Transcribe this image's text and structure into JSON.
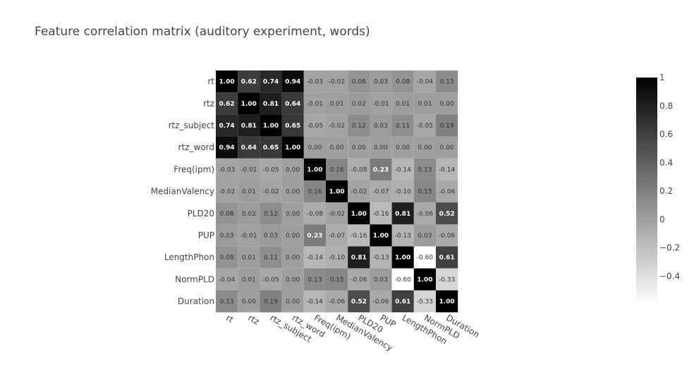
{
  "chart_data": {
    "type": "heatmap",
    "title": "Feature correlation matrix (auditory experiment,  words)",
    "labels": [
      "rt",
      "rtz",
      "rtz_subject",
      "rtz_word",
      "Freq(ipm)",
      "MedianValency",
      "PLD20",
      "PUP",
      "LengthPhon",
      "NormPLD",
      "Duration"
    ],
    "matrix": [
      [
        1.0,
        0.62,
        0.74,
        0.94,
        -0.03,
        -0.02,
        0.08,
        0.03,
        0.08,
        -0.04,
        0.13
      ],
      [
        0.62,
        1.0,
        0.81,
        0.64,
        -0.01,
        0.01,
        0.02,
        -0.01,
        0.01,
        0.01,
        0.0
      ],
      [
        0.74,
        0.81,
        1.0,
        0.65,
        -0.05,
        -0.02,
        0.12,
        0.03,
        0.11,
        -0.05,
        0.19
      ],
      [
        0.94,
        0.64,
        0.65,
        1.0,
        0.0,
        0.0,
        0.0,
        0.0,
        0.0,
        0.0,
        0.0
      ],
      [
        -0.03,
        -0.01,
        -0.05,
        0.0,
        1.0,
        0.16,
        -0.08,
        0.23,
        -0.14,
        0.13,
        -0.14
      ],
      [
        -0.02,
        0.01,
        -0.02,
        0.0,
        0.16,
        1.0,
        -0.02,
        -0.07,
        -0.1,
        0.15,
        -0.06
      ],
      [
        0.08,
        0.02,
        0.12,
        0.0,
        -0.08,
        -0.02,
        1.0,
        -0.16,
        0.81,
        -0.06,
        0.52
      ],
      [
        0.03,
        -0.01,
        0.03,
        0.0,
        0.23,
        -0.07,
        -0.16,
        1.0,
        -0.13,
        0.03,
        -0.06
      ],
      [
        0.08,
        0.01,
        0.11,
        0.0,
        -0.14,
        -0.1,
        0.81,
        -0.13,
        1.0,
        -0.6,
        0.61
      ],
      [
        -0.04,
        0.01,
        -0.05,
        0.0,
        0.13,
        0.15,
        -0.06,
        0.03,
        -0.6,
        1.0,
        -0.33
      ],
      [
        0.13,
        0.0,
        0.19,
        0.0,
        -0.14,
        -0.06,
        0.52,
        -0.06,
        0.61,
        -0.33,
        1.0
      ]
    ],
    "zmin": -0.6,
    "zmax": 1.0,
    "colorscale": [
      "#ffffff",
      "#000000"
    ],
    "colorbar_ticks": [
      1,
      0.8,
      0.6,
      0.4,
      0.2,
      0,
      -0.2,
      -0.4
    ],
    "colorbar_tick_labels": [
      "1",
      "0.8",
      "0.6",
      "0.4",
      "0.2",
      "0",
      "−0.2",
      "−0.4"
    ]
  }
}
